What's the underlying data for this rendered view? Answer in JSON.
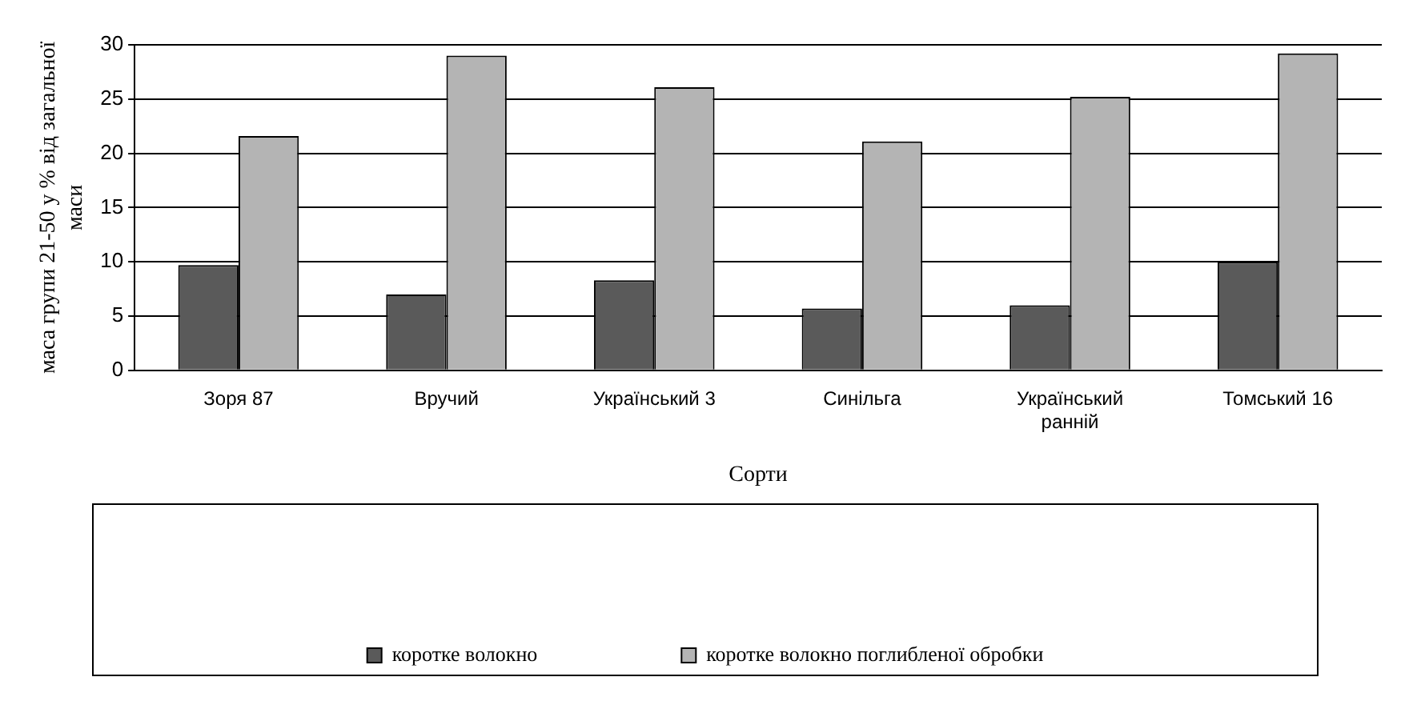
{
  "chart_data": {
    "type": "bar",
    "xlabel": "Сорти",
    "ylabel": "маса групи 21-50 у % від загальної маси",
    "categories": [
      "Зоря 87",
      "Вручий",
      "Український 3",
      "Синільга",
      "Український ранній",
      "Томський 16"
    ],
    "series": [
      {
        "name": "коротке волокно",
        "color": "#5a5a5a",
        "values": [
          9.7,
          7.0,
          8.3,
          5.7,
          6.0,
          10.0
        ]
      },
      {
        "name": "коротке волокно поглибленої обробки",
        "color": "#b4b4b4",
        "values": [
          21.6,
          29.0,
          26.1,
          21.1,
          25.2,
          29.2
        ]
      }
    ],
    "ylim": [
      0,
      30
    ],
    "yticks": [
      0,
      5,
      10,
      15,
      20,
      25,
      30
    ],
    "grid": "y",
    "legend": "bottom"
  }
}
